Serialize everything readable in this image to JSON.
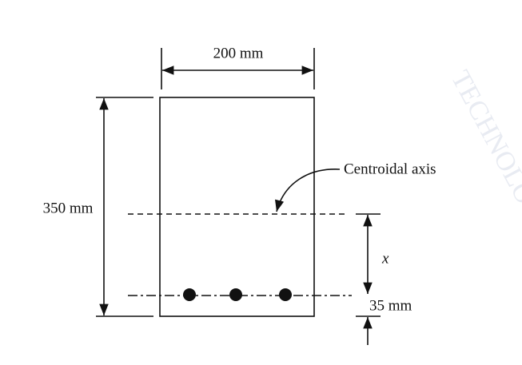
{
  "labels": {
    "width": "200 mm",
    "height": "350 mm",
    "axis": "Centroidal axis",
    "depth": "x",
    "cover": "35 mm"
  },
  "watermark": "TECHNOLOGY BOMBAY"
}
